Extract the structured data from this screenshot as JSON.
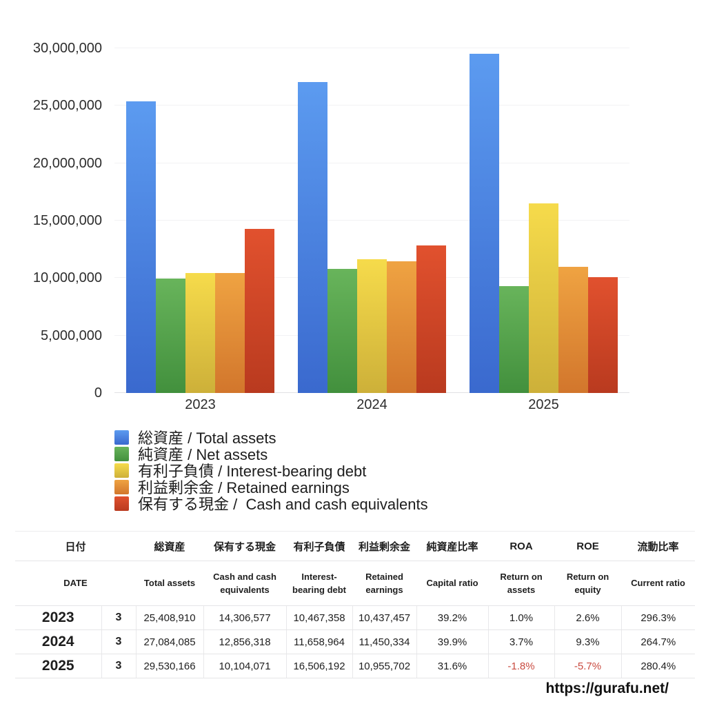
{
  "chart_data": {
    "type": "bar",
    "categories": [
      "2023",
      "2024",
      "2025"
    ],
    "series": [
      {
        "key": "total_assets",
        "label": "総資産 / Total assets",
        "color": "#4a85e2",
        "gradient": [
          "#5c9bf0",
          "#3a69ce"
        ],
        "values": [
          25408910,
          27084085,
          29530166
        ]
      },
      {
        "key": "net_assets",
        "label": "純資産 / Net assets",
        "color": "#54a24a",
        "gradient": [
          "#68b45b",
          "#42903d"
        ],
        "values": [
          9960000,
          10807000,
          9332000
        ]
      },
      {
        "key": "interest_bearing_debt",
        "label": "有利子負債 / Interest-bearing debt",
        "color": "#e2c83e",
        "gradient": [
          "#f6db4b",
          "#cdb039"
        ],
        "values": [
          10467358,
          11658964,
          16506192
        ]
      },
      {
        "key": "retained_earnings",
        "label": "利益剰余金 / Retained earnings",
        "color": "#e28f3a",
        "gradient": [
          "#efa342",
          "#d2762c"
        ],
        "values": [
          10437457,
          11450334,
          10955702
        ]
      },
      {
        "key": "cash_and_cash_equivalents",
        "label": "保有する現金 /  Cash and cash equivalents",
        "color": "#cd4527",
        "gradient": [
          "#e1512e",
          "#b93a1f"
        ],
        "values": [
          14306577,
          12856318,
          10104071
        ]
      }
    ],
    "y_axis": {
      "min": 0,
      "max": 30000000,
      "tick_interval": 5000000,
      "tick_labels": [
        "0",
        "5,000,000",
        "10,000,000",
        "15,000,000",
        "20,000,000",
        "25,000,000",
        "30,000,000"
      ]
    },
    "grid": true,
    "legend_position": "bottom-left",
    "title": ""
  },
  "table": {
    "columns": [
      {
        "jp": "日付",
        "en": "DATE"
      },
      {
        "jp": "総資産",
        "en": "Total assets"
      },
      {
        "jp": "保有する現金",
        "en": "Cash and cash equivalents"
      },
      {
        "jp": "有利子負債",
        "en": "Interest-bearing debt"
      },
      {
        "jp": "利益剰余金",
        "en": "Retained earnings"
      },
      {
        "jp": "純資産比率",
        "en": "Capital ratio"
      },
      {
        "jp": "ROA",
        "en": "Return on assets"
      },
      {
        "jp": "ROE",
        "en": "Return on equity"
      },
      {
        "jp": "流動比率",
        "en": "Current ratio"
      }
    ],
    "rows": [
      {
        "year": "2023",
        "month": "3",
        "cells": [
          "25,408,910",
          "14,306,577",
          "10,467,358",
          "10,437,457",
          "39.2%",
          "1.0%",
          "2.6%",
          "296.3%"
        ]
      },
      {
        "year": "2024",
        "month": "3",
        "cells": [
          "27,084,085",
          "12,856,318",
          "11,658,964",
          "11,450,334",
          "39.9%",
          "3.7%",
          "9.3%",
          "264.7%"
        ]
      },
      {
        "year": "2025",
        "month": "3",
        "cells": [
          "29,530,166",
          "10,104,071",
          "16,506,192",
          "10,955,702",
          "31.6%",
          "-1.8%",
          "-5.7%",
          "280.4%"
        ]
      }
    ],
    "negative_color": "#c94a3f"
  },
  "footer": {
    "url": "https://gurafu.net/"
  }
}
